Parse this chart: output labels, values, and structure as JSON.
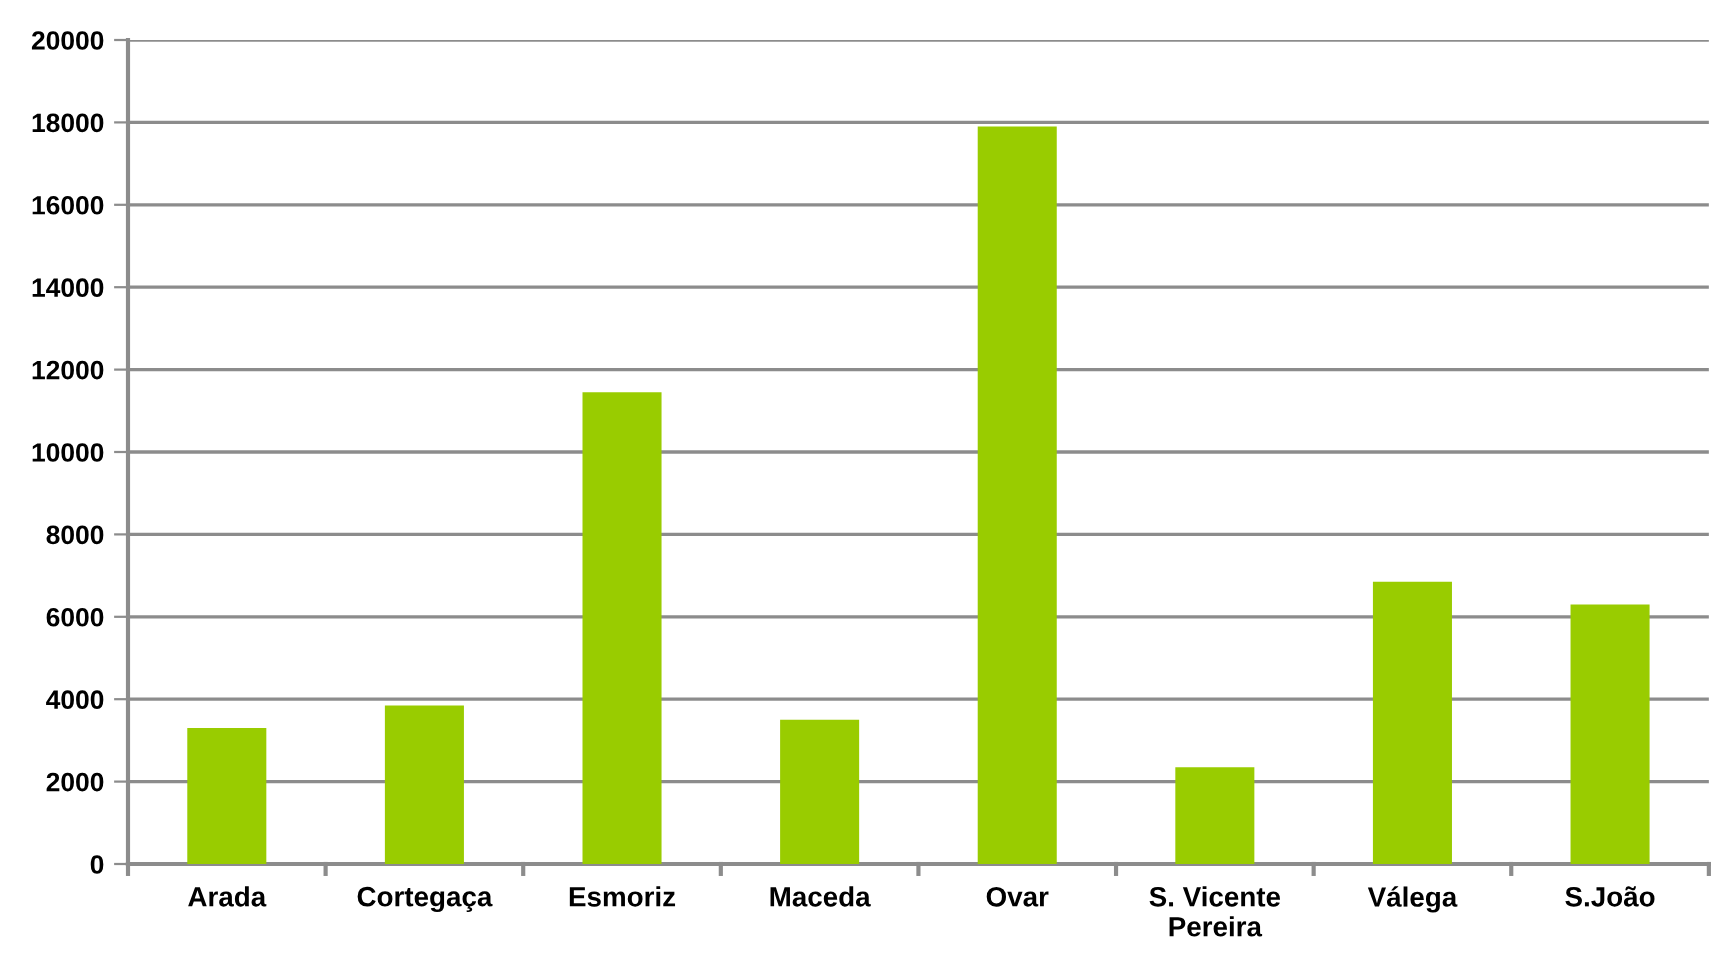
{
  "chart_data": {
    "type": "bar",
    "categories": [
      "Arada",
      "Cortegaça",
      "Esmoriz",
      "Maceda",
      "Ovar",
      "S. Vicente\nPereira",
      "Válega",
      "S.João"
    ],
    "values": [
      3300,
      3850,
      11450,
      3500,
      17900,
      2350,
      6850,
      6300
    ],
    "color": "#99cc00",
    "ylim": [
      0,
      20000
    ],
    "yticks": [
      0,
      2000,
      4000,
      6000,
      8000,
      10000,
      12000,
      14000,
      16000,
      18000,
      20000
    ],
    "grid": "y",
    "legend": false
  }
}
